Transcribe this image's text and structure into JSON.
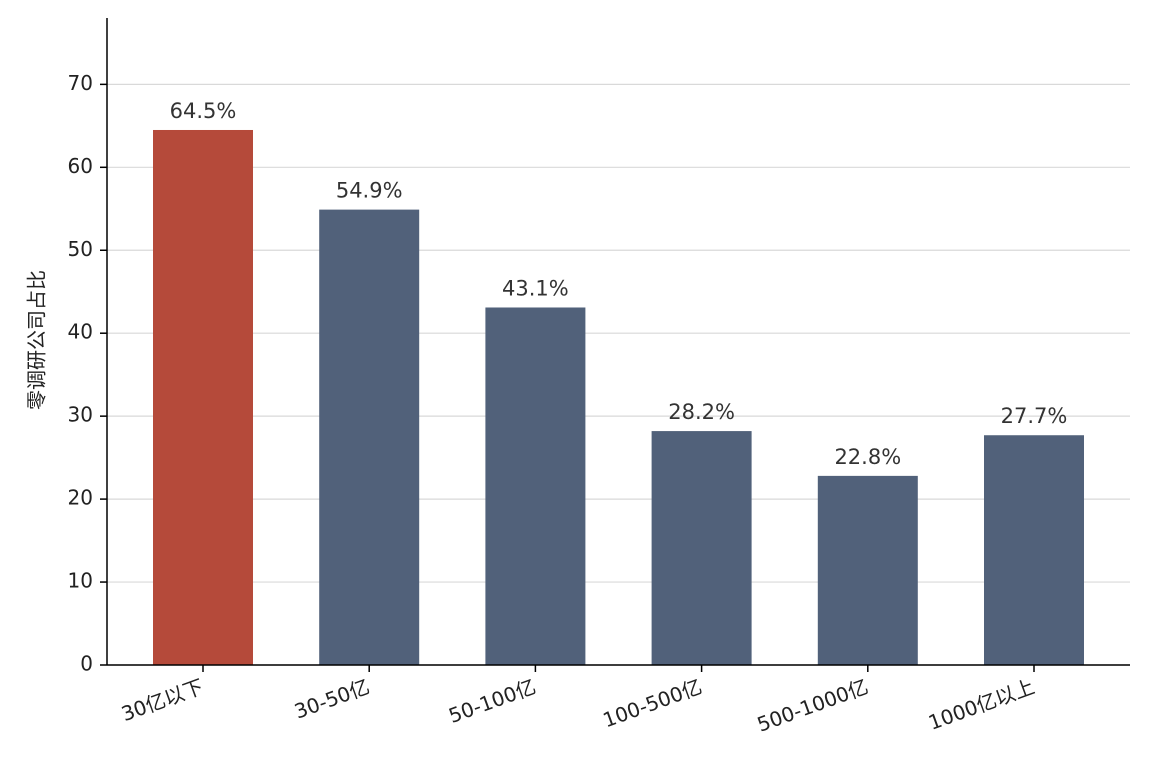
{
  "chart_data": {
    "type": "bar",
    "y_label": "零调研公司占比",
    "categories": [
      "30亿以下",
      "30-50亿",
      "50-100亿",
      "100-500亿",
      "500-1000亿",
      "1000亿以上"
    ],
    "values": [
      64.5,
      54.9,
      43.1,
      28.2,
      22.8,
      27.7
    ],
    "value_labels": [
      "64.5%",
      "54.9%",
      "43.1%",
      "28.2%",
      "22.8%",
      "27.7%"
    ],
    "colors": [
      "#b54a3a",
      "#51617a",
      "#51617a",
      "#51617a",
      "#51617a",
      "#51617a"
    ],
    "ylim": [
      0,
      78
    ],
    "yticks": [
      0,
      10,
      20,
      30,
      40,
      50,
      60,
      70
    ],
    "grid": true
  }
}
